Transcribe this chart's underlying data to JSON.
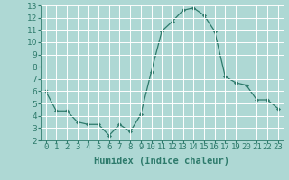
{
  "x_values": [
    0,
    1,
    2,
    3,
    4,
    5,
    6,
    7,
    8,
    9,
    10,
    11,
    12,
    13,
    14,
    15,
    16,
    17,
    19,
    20,
    21,
    22,
    23
  ],
  "y_values": [
    6.0,
    4.4,
    4.4,
    3.5,
    3.3,
    3.3,
    2.4,
    3.3,
    2.7,
    4.1,
    7.6,
    10.9,
    11.7,
    12.6,
    12.8,
    12.2,
    10.9,
    7.2,
    6.7,
    6.5,
    5.3,
    5.3,
    4.6
  ],
  "xlabel": "Humidex (Indice chaleur)",
  "ylim": [
    2,
    13
  ],
  "yticks": [
    2,
    3,
    4,
    5,
    6,
    7,
    8,
    9,
    10,
    11,
    12,
    13
  ],
  "bg_color": "#aed8d4",
  "line_color": "#2d7a6b",
  "grid_color": "#ffffff",
  "xlabel_fontsize": 7.5,
  "tick_fontsize": 6.5
}
